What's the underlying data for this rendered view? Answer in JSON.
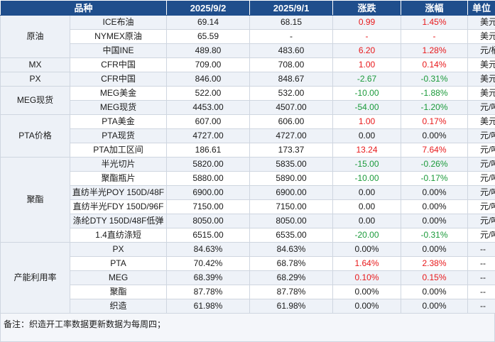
{
  "header": [
    "品种",
    "2025/9/2",
    "2025/9/1",
    "涨跌",
    "涨幅",
    "单位"
  ],
  "groups": [
    {
      "name": "原油",
      "rows": [
        {
          "product": "ICE布油",
          "v1": "69.14",
          "v2": "68.15",
          "chg": "0.99",
          "pct": "1.45%",
          "unit": "美元/桶",
          "chg_color": "pos",
          "pct_color": "pos"
        },
        {
          "product": "NYMEX原油",
          "v1": "65.59",
          "v2": "-",
          "chg": "-",
          "pct": "-",
          "unit": "美元/桶",
          "chg_color": "pos",
          "pct_color": "pos"
        },
        {
          "product": "中国INE",
          "v1": "489.80",
          "v2": "483.60",
          "chg": "6.20",
          "pct": "1.28%",
          "unit": "元/桶",
          "chg_color": "pos",
          "pct_color": "pos"
        }
      ]
    },
    {
      "name": "MX",
      "rows": [
        {
          "product": "CFR中国",
          "v1": "709.00",
          "v2": "708.00",
          "chg": "1.00",
          "pct": "0.14%",
          "unit": "美元/吨",
          "chg_color": "pos",
          "pct_color": "pos"
        }
      ]
    },
    {
      "name": "PX",
      "rows": [
        {
          "product": "CFR中国",
          "v1": "846.00",
          "v2": "848.67",
          "chg": "-2.67",
          "pct": "-0.31%",
          "unit": "美元/吨",
          "chg_color": "neg",
          "pct_color": "neg"
        }
      ]
    },
    {
      "name": "MEG现货",
      "rows": [
        {
          "product": "MEG美金",
          "v1": "522.00",
          "v2": "532.00",
          "chg": "-10.00",
          "pct": "-1.88%",
          "unit": "美元/吨",
          "chg_color": "neg",
          "pct_color": "neg"
        },
        {
          "product": "MEG现货",
          "v1": "4453.00",
          "v2": "4507.00",
          "chg": "-54.00",
          "pct": "-1.20%",
          "unit": "元/吨",
          "chg_color": "neg",
          "pct_color": "neg"
        }
      ]
    },
    {
      "name": "PTA价格",
      "rows": [
        {
          "product": "PTA美金",
          "v1": "607.00",
          "v2": "606.00",
          "chg": "1.00",
          "pct": "0.17%",
          "unit": "美元/吨",
          "chg_color": "pos",
          "pct_color": "pos"
        },
        {
          "product": "PTA现货",
          "v1": "4727.00",
          "v2": "4727.00",
          "chg": "0.00",
          "pct": "0.00%",
          "unit": "元/吨",
          "chg_color": "zero",
          "pct_color": "zero"
        },
        {
          "product": "PTA加工区间",
          "v1": "186.61",
          "v2": "173.37",
          "chg": "13.24",
          "pct": "7.64%",
          "unit": "元/吨",
          "chg_color": "pos",
          "pct_color": "pos"
        }
      ]
    },
    {
      "name": "聚酯",
      "rows": [
        {
          "product": "半光切片",
          "v1": "5820.00",
          "v2": "5835.00",
          "chg": "-15.00",
          "pct": "-0.26%",
          "unit": "元/吨",
          "chg_color": "neg",
          "pct_color": "neg"
        },
        {
          "product": "聚酯瓶片",
          "v1": "5880.00",
          "v2": "5890.00",
          "chg": "-10.00",
          "pct": "-0.17%",
          "unit": "元/吨",
          "chg_color": "neg",
          "pct_color": "neg"
        },
        {
          "product": "直纺半光POY 150D/48F",
          "v1": "6900.00",
          "v2": "6900.00",
          "chg": "0.00",
          "pct": "0.00%",
          "unit": "元/吨",
          "chg_color": "zero",
          "pct_color": "zero"
        },
        {
          "product": "直纺半光FDY 150D/96F",
          "v1": "7150.00",
          "v2": "7150.00",
          "chg": "0.00",
          "pct": "0.00%",
          "unit": "元/吨",
          "chg_color": "zero",
          "pct_color": "zero"
        },
        {
          "product": "涤纶DTY 150D/48F低弹",
          "v1": "8050.00",
          "v2": "8050.00",
          "chg": "0.00",
          "pct": "0.00%",
          "unit": "元/吨",
          "chg_color": "zero",
          "pct_color": "zero"
        },
        {
          "product": "1.4直纺涤短",
          "v1": "6515.00",
          "v2": "6535.00",
          "chg": "-20.00",
          "pct": "-0.31%",
          "unit": "元/吨",
          "chg_color": "neg",
          "pct_color": "neg"
        }
      ]
    },
    {
      "name": "产能利用率",
      "rows": [
        {
          "product": "PX",
          "v1": "84.63%",
          "v2": "84.63%",
          "chg": "0.00%",
          "pct": "0.00%",
          "unit": "--",
          "chg_color": "zero",
          "pct_color": "zero"
        },
        {
          "product": "PTA",
          "v1": "70.42%",
          "v2": "68.78%",
          "chg": "1.64%",
          "pct": "2.38%",
          "unit": "--",
          "chg_color": "pos",
          "pct_color": "pos"
        },
        {
          "product": "MEG",
          "v1": "68.39%",
          "v2": "68.29%",
          "chg": "0.10%",
          "pct": "0.15%",
          "unit": "--",
          "chg_color": "pos",
          "pct_color": "pos"
        },
        {
          "product": "聚酯",
          "v1": "87.78%",
          "v2": "87.78%",
          "chg": "0.00%",
          "pct": "0.00%",
          "unit": "--",
          "chg_color": "zero",
          "pct_color": "zero"
        },
        {
          "product": "织造",
          "v1": "61.98%",
          "v2": "61.98%",
          "chg": "0.00%",
          "pct": "0.00%",
          "unit": "--",
          "chg_color": "zero",
          "pct_color": "zero"
        }
      ]
    }
  ],
  "note": "备注：织造开工率数据更新数据为每周四；",
  "colors": {
    "header_bg": "#1f4e8c",
    "up": "#e8191b",
    "down": "#1a9a3a"
  }
}
